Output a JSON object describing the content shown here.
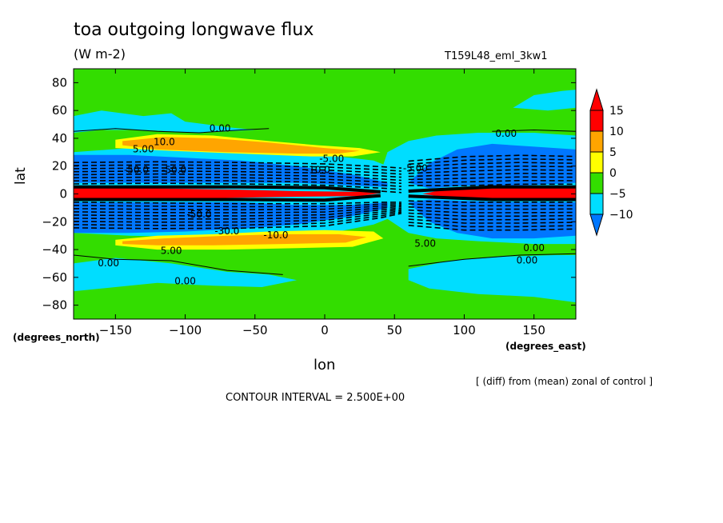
{
  "colors": {
    "red": "#ff0000",
    "orange": "#ffa500",
    "yellow": "#ffff00",
    "green": "#33dd00",
    "cyan": "#00ddff",
    "blue": "#0077ff"
  },
  "chart_data": {
    "type": "heatmap",
    "title": "toa outgoing longwave flux",
    "units": "(W m-2)",
    "run_name": "T159L48_eml_3kw1",
    "xlabel": "lon",
    "ylabel": "lat",
    "x_units": "(degrees_east)",
    "y_units": "(degrees_north)",
    "xlim": [
      -180,
      180
    ],
    "ylim": [
      -90,
      90
    ],
    "x_ticks": [
      -150,
      -100,
      -50,
      0,
      50,
      100,
      150
    ],
    "y_ticks": [
      80,
      60,
      40,
      20,
      0,
      -20,
      -40,
      -60,
      -80
    ],
    "colorbar": {
      "levels": [
        15,
        10,
        5,
        0,
        -5,
        -10
      ],
      "bins": [
        {
          "from": 15,
          "to": null,
          "color": "red"
        },
        {
          "from": 10,
          "to": 15,
          "color": "red"
        },
        {
          "from": 5,
          "to": 10,
          "color": "orange"
        },
        {
          "from": 0,
          "to": 5,
          "color": "yellow"
        },
        {
          "from": -5,
          "to": 0,
          "color": "green"
        },
        {
          "from": -10,
          "to": -5,
          "color": "cyan"
        },
        {
          "from": null,
          "to": -10,
          "color": "blue"
        }
      ]
    },
    "contour_labels": [
      {
        "text": "0.00",
        "lon": -75,
        "lat": 47
      },
      {
        "text": "10.0",
        "lon": -115,
        "lat": 37
      },
      {
        "text": "5.00",
        "lon": -130,
        "lat": 32
      },
      {
        "text": "-50.0",
        "lon": -135,
        "lat": 17
      },
      {
        "text": "-50.0",
        "lon": -108,
        "lat": 17
      },
      {
        "text": "-5.00",
        "lon": 5,
        "lat": 25
      },
      {
        "text": "-10.0",
        "lon": -5,
        "lat": 17
      },
      {
        "text": "0.00",
        "lon": 130,
        "lat": 43
      },
      {
        "text": "-5.00",
        "lon": 65,
        "lat": 18
      },
      {
        "text": "-50.0",
        "lon": -90,
        "lat": -15
      },
      {
        "text": "-30.0",
        "lon": -70,
        "lat": -27
      },
      {
        "text": "-10.0",
        "lon": -35,
        "lat": -30
      },
      {
        "text": "5.00",
        "lon": -110,
        "lat": -41
      },
      {
        "text": "5.00",
        "lon": 72,
        "lat": -36
      },
      {
        "text": "0.00",
        "lon": -155,
        "lat": -50
      },
      {
        "text": "0.00",
        "lon": -100,
        "lat": -63
      },
      {
        "text": "0.00",
        "lon": 150,
        "lat": -39
      },
      {
        "text": "0.00",
        "lon": 145,
        "lat": -48
      }
    ],
    "regions": [
      {
        "value_range": "15+",
        "color": "red",
        "desc": "equatorial band",
        "lon": [
          -180,
          180
        ],
        "lat": [
          -3,
          4
        ]
      },
      {
        "value_range": "<-10",
        "color": "blue",
        "desc": "subtropical flanks",
        "lat": [
          [
            -28,
            -5
          ],
          [
            6,
            28
          ]
        ]
      },
      {
        "value_range": "5..10",
        "color": "orange",
        "lat_centers": [
          35,
          -34
        ]
      }
    ]
  },
  "footer": {
    "note": "[ (diff) from (mean) zonal of control ]",
    "contour_interval": "CONTOUR INTERVAL = 2.500E+00"
  }
}
